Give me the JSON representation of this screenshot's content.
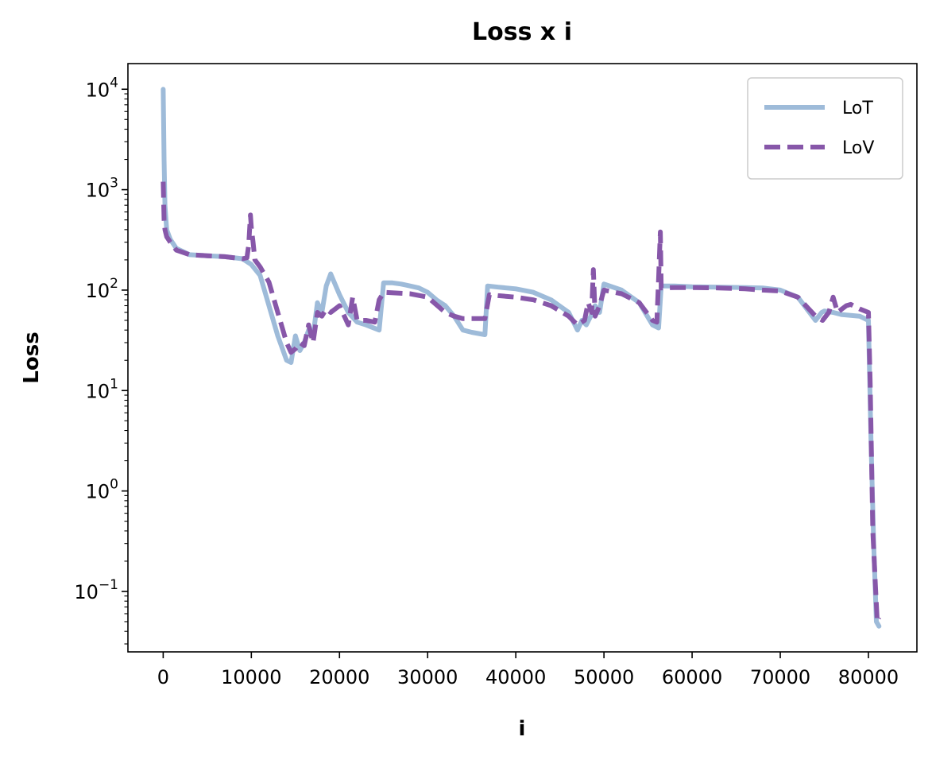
{
  "chart_data": {
    "type": "line",
    "title": "Loss x i",
    "xlabel": "i",
    "ylabel": "Loss",
    "xlim": [
      -4000,
      85500
    ],
    "ylim": [
      0.025,
      18000
    ],
    "yscale": "log",
    "grid": false,
    "legend": "top-right",
    "x_ticks": [
      0,
      10000,
      20000,
      30000,
      40000,
      50000,
      60000,
      70000,
      80000
    ],
    "y_ticks": [
      {
        "value": 0.1,
        "base": "10",
        "exp": "−1"
      },
      {
        "value": 1,
        "base": "10",
        "exp": "0"
      },
      {
        "value": 10,
        "base": "10",
        "exp": "1"
      },
      {
        "value": 100,
        "base": "10",
        "exp": "2"
      },
      {
        "value": 1000,
        "base": "10",
        "exp": "3"
      },
      {
        "value": 10000,
        "base": "10",
        "exp": "4"
      }
    ],
    "series": [
      {
        "name": "LoT",
        "color": "#9ebbd9",
        "style": "solid",
        "x": [
          0,
          100,
          200,
          400,
          800,
          1500,
          3000,
          5000,
          7000,
          9000,
          10000,
          11000,
          12000,
          13000,
          14000,
          14500,
          15000,
          15500,
          16000,
          16500,
          17000,
          17500,
          18000,
          18500,
          19000,
          20000,
          21000,
          22000,
          23000,
          24500,
          25000,
          26000,
          27000,
          28000,
          29000,
          30000,
          31000,
          32000,
          33000,
          34000,
          35000,
          36500,
          36800,
          38000,
          40000,
          42000,
          44000,
          46000,
          47000,
          47500,
          48000,
          48500,
          49000,
          49500,
          50000,
          52000,
          54000,
          55500,
          56200,
          56500,
          58000,
          60000,
          63000,
          66000,
          68000,
          70000,
          72000,
          74000,
          74700,
          75000,
          76000,
          77000,
          78000,
          79000,
          80000,
          80300,
          80600,
          80900,
          81200
        ],
        "y": [
          10000,
          2000,
          700,
          400,
          320,
          260,
          225,
          220,
          215,
          205,
          180,
          140,
          70,
          35,
          20,
          19,
          35,
          25,
          30,
          40,
          35,
          75,
          60,
          110,
          145,
          90,
          60,
          48,
          45,
          40,
          118,
          118,
          115,
          110,
          105,
          95,
          80,
          70,
          55,
          40,
          38,
          36,
          110,
          107,
          103,
          95,
          80,
          60,
          40,
          50,
          45,
          55,
          70,
          60,
          115,
          100,
          75,
          45,
          42,
          110,
          110,
          108,
          107,
          106,
          105,
          100,
          85,
          50,
          60,
          62,
          60,
          57,
          56,
          55,
          50,
          3,
          0.3,
          0.05,
          0.045
        ]
      },
      {
        "name": "LoV",
        "color": "#8757a9",
        "style": "dashed",
        "x": [
          0,
          100,
          200,
          400,
          800,
          1500,
          3000,
          5000,
          7000,
          9000,
          9500,
          9700,
          9900,
          10000,
          10200,
          10400,
          11000,
          12000,
          13000,
          14000,
          14500,
          15000,
          15500,
          16000,
          16500,
          17000,
          17500,
          18000,
          18500,
          19000,
          20000,
          21000,
          21500,
          22000,
          23000,
          24000,
          24500,
          25000,
          28000,
          30000,
          32000,
          33000,
          34000,
          36000,
          36500,
          37000,
          38000,
          40000,
          42000,
          44000,
          46000,
          47000,
          47800,
          48200,
          48600,
          48800,
          49000,
          49500,
          50000,
          52000,
          54000,
          55500,
          56000,
          56200,
          56400,
          56500,
          58000,
          60000,
          63000,
          66000,
          68000,
          70000,
          72000,
          74000,
          74800,
          75500,
          76000,
          76500,
          77000,
          77500,
          78000,
          79000,
          80000,
          80200,
          80500,
          80800,
          81000,
          81200
        ],
        "y": [
          1200,
          500,
          400,
          340,
          300,
          250,
          225,
          220,
          215,
          205,
          210,
          280,
          560,
          420,
          300,
          200,
          170,
          120,
          60,
          30,
          24,
          26,
          30,
          28,
          45,
          30,
          60,
          55,
          65,
          60,
          70,
          45,
          85,
          50,
          50,
          48,
          80,
          95,
          92,
          85,
          60,
          55,
          52,
          52,
          52,
          90,
          88,
          85,
          80,
          70,
          55,
          45,
          50,
          75,
          60,
          160,
          55,
          70,
          100,
          92,
          75,
          50,
          48,
          130,
          380,
          105,
          106,
          106,
          105,
          103,
          100,
          98,
          85,
          55,
          50,
          60,
          85,
          60,
          65,
          70,
          72,
          65,
          60,
          12,
          0.4,
          0.11,
          0.05,
          0.055
        ]
      }
    ]
  }
}
